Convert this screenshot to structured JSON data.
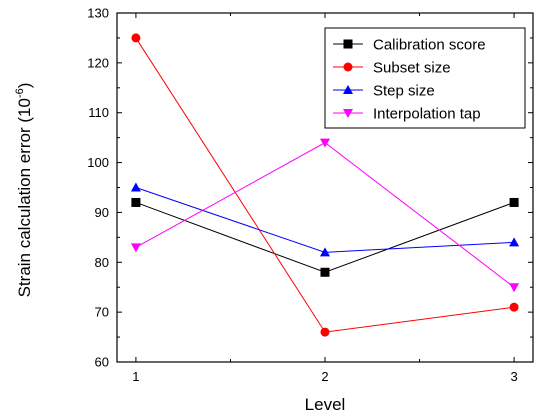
{
  "chart_data": {
    "type": "line",
    "x": [
      1,
      2,
      3
    ],
    "x_tick_labels": [
      "1",
      "2",
      "3"
    ],
    "y_tick_labels": [
      "60",
      "70",
      "80",
      "90",
      "100",
      "110",
      "120",
      "130"
    ],
    "xlabel": "Level",
    "ylabel_main": "Strain calculation error (10",
    "ylabel_exp": "-6",
    "ylabel_close": ")",
    "xlim": [
      0.9,
      3.1
    ],
    "ylim": [
      60,
      130
    ],
    "grid": false,
    "legend_position": "top-right",
    "series": [
      {
        "name": "Calibration score",
        "values": [
          92,
          78,
          92
        ],
        "color": "#000000",
        "marker": "square"
      },
      {
        "name": "Subset size",
        "values": [
          125,
          66,
          71
        ],
        "color": "#ff0000",
        "marker": "circle"
      },
      {
        "name": "Step size",
        "values": [
          95,
          82,
          84
        ],
        "color": "#0000ff",
        "marker": "triangle-up"
      },
      {
        "name": "Interpolation tap",
        "values": [
          83,
          104,
          75
        ],
        "color": "#ff00ff",
        "marker": "triangle-down"
      }
    ]
  }
}
